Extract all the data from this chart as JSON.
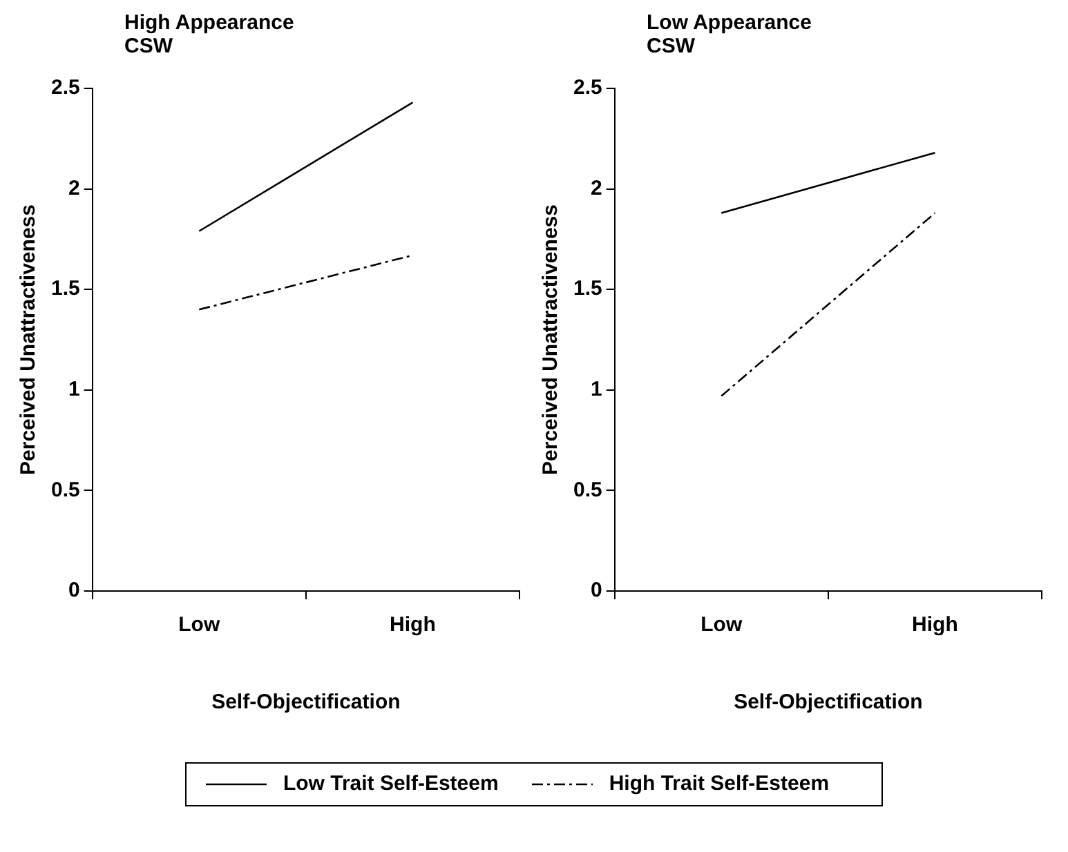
{
  "chart_data": [
    {
      "type": "line",
      "title": "High Appearance CSW",
      "xlabel": "Self-Objectification",
      "ylabel": "Perceived Unattractiveness",
      "categories": [
        "Low",
        "High"
      ],
      "ylim": [
        0,
        2.5
      ],
      "yticks": [
        0,
        0.5,
        1,
        1.5,
        2,
        2.5
      ],
      "grid": false,
      "legend": "bottom",
      "marker": "none",
      "series": [
        {
          "name": "Low Trait Self-Esteem",
          "color": "#000000",
          "line_style": "solid",
          "values": [
            1.79,
            2.43
          ]
        },
        {
          "name": "High Trait Self-Esteem",
          "color": "#000000",
          "line_style": "dashed",
          "values": [
            1.4,
            1.67
          ]
        }
      ]
    },
    {
      "type": "line",
      "title": "Low Appearance CSW",
      "xlabel": "Self-Objectification",
      "ylabel": "Perceived Unattractiveness",
      "categories": [
        "Low",
        "High"
      ],
      "ylim": [
        0,
        2.5
      ],
      "yticks": [
        0,
        0.5,
        1,
        1.5,
        2,
        2.5
      ],
      "grid": false,
      "marker": "none",
      "series": [
        {
          "name": "Low Trait Self-Esteem",
          "color": "#000000",
          "line_style": "solid",
          "values": [
            1.88,
            2.18
          ]
        },
        {
          "name": "High Trait Self-Esteem",
          "color": "#000000",
          "line_style": "dashed",
          "values": [
            0.97,
            1.88
          ]
        }
      ]
    }
  ]
}
